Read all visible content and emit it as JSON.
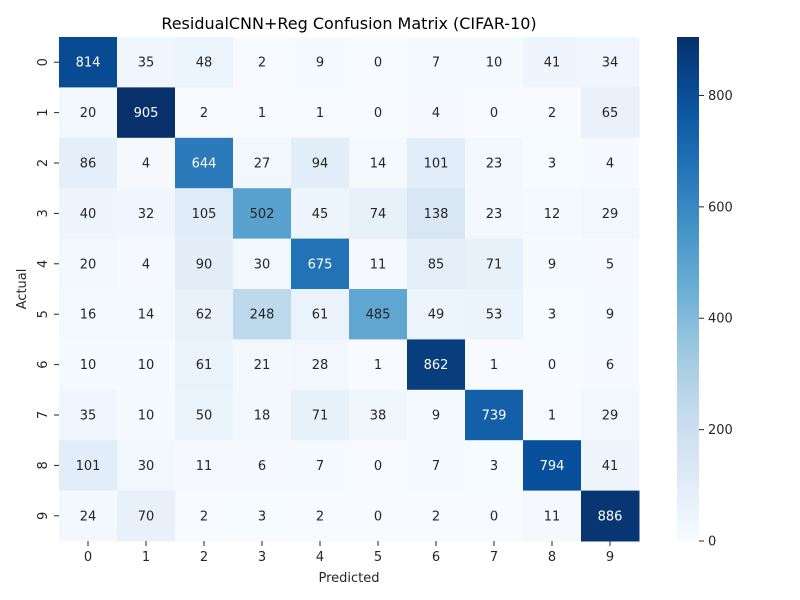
{
  "chart_data": {
    "type": "heatmap",
    "title": "ResidualCNN+Reg Confusion Matrix (CIFAR-10)",
    "xlabel": "Predicted",
    "ylabel": "Actual",
    "x_categories": [
      "0",
      "1",
      "2",
      "3",
      "4",
      "5",
      "6",
      "7",
      "8",
      "9"
    ],
    "y_categories": [
      "0",
      "1",
      "2",
      "3",
      "4",
      "5",
      "6",
      "7",
      "8",
      "9"
    ],
    "values": [
      [
        814,
        35,
        48,
        2,
        9,
        0,
        7,
        10,
        41,
        34
      ],
      [
        20,
        905,
        2,
        1,
        1,
        0,
        4,
        0,
        2,
        65
      ],
      [
        86,
        4,
        644,
        27,
        94,
        14,
        101,
        23,
        3,
        4
      ],
      [
        40,
        32,
        105,
        502,
        45,
        74,
        138,
        23,
        12,
        29
      ],
      [
        20,
        4,
        90,
        30,
        675,
        11,
        85,
        71,
        9,
        5
      ],
      [
        16,
        14,
        62,
        248,
        61,
        485,
        49,
        53,
        3,
        9
      ],
      [
        10,
        10,
        61,
        21,
        28,
        1,
        862,
        1,
        0,
        6
      ],
      [
        35,
        10,
        50,
        18,
        71,
        38,
        9,
        739,
        1,
        29
      ],
      [
        101,
        30,
        11,
        6,
        7,
        0,
        7,
        3,
        794,
        41
      ],
      [
        24,
        70,
        2,
        3,
        2,
        0,
        2,
        0,
        11,
        886
      ]
    ],
    "colormap": "Blues",
    "color_range": [
      0,
      905
    ],
    "colorbar_ticks": [
      0,
      200,
      400,
      600,
      800
    ],
    "colors": {
      "low": "#f7fbff",
      "high": "#08306b",
      "text_dark": "#262626",
      "text_light": "#ffffff"
    }
  }
}
